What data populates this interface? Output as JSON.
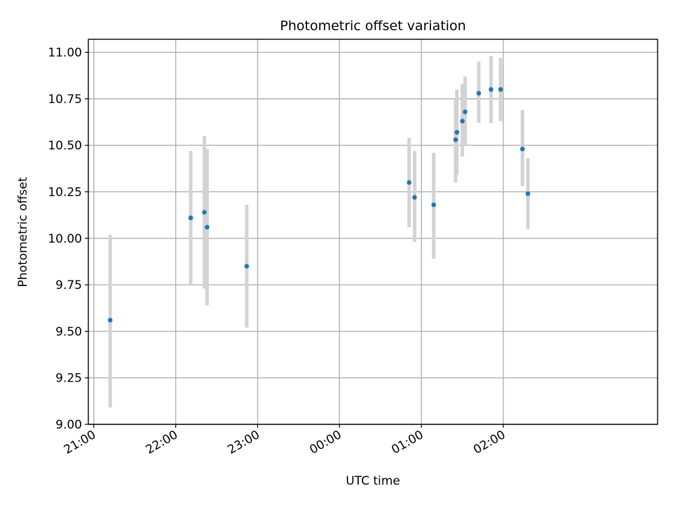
{
  "chart_data": {
    "type": "scatter",
    "title": "Photometric offset variation",
    "xlabel": "UTC time",
    "ylabel": "Photometric offset",
    "x_tick_labels": [
      "21:00",
      "22:00",
      "23:00",
      "00:00",
      "01:00",
      "02:00"
    ],
    "y_tick_labels": [
      "9.00",
      "9.25",
      "9.50",
      "9.75",
      "10.00",
      "10.25",
      "10.50",
      "10.75",
      "11.00"
    ],
    "y_ticks": [
      9.0,
      9.25,
      9.5,
      9.75,
      10.0,
      10.25,
      10.5,
      10.75,
      11.0
    ],
    "ylim": [
      9.0,
      11.07
    ],
    "xlim": [
      "20:56",
      "03:53"
    ],
    "grid": true,
    "point_color": "#1f77b4",
    "errorbar_color": "#d3d3d3",
    "points": [
      {
        "time": "21:12",
        "y": 9.56,
        "ylow": 9.09,
        "yhigh": 10.02
      },
      {
        "time": "22:11",
        "y": 10.11,
        "ylow": 9.75,
        "yhigh": 10.47
      },
      {
        "time": "22:21",
        "y": 10.14,
        "ylow": 9.73,
        "yhigh": 10.55
      },
      {
        "time": "22:23",
        "y": 10.06,
        "ylow": 9.64,
        "yhigh": 10.48
      },
      {
        "time": "22:52",
        "y": 9.85,
        "ylow": 9.52,
        "yhigh": 10.18
      },
      {
        "time": "00:51",
        "y": 10.3,
        "ylow": 10.06,
        "yhigh": 10.54
      },
      {
        "time": "00:55",
        "y": 10.22,
        "ylow": 9.98,
        "yhigh": 10.47
      },
      {
        "time": "01:09",
        "y": 10.18,
        "ylow": 9.89,
        "yhigh": 10.46
      },
      {
        "time": "01:25",
        "y": 10.53,
        "ylow": 10.3,
        "yhigh": 10.75
      },
      {
        "time": "01:26",
        "y": 10.57,
        "ylow": 10.34,
        "yhigh": 10.8
      },
      {
        "time": "01:30",
        "y": 10.63,
        "ylow": 10.44,
        "yhigh": 10.83
      },
      {
        "time": "01:32",
        "y": 10.68,
        "ylow": 10.5,
        "yhigh": 10.87
      },
      {
        "time": "01:42",
        "y": 10.78,
        "ylow": 10.62,
        "yhigh": 10.95
      },
      {
        "time": "01:51",
        "y": 10.8,
        "ylow": 10.62,
        "yhigh": 10.98
      },
      {
        "time": "01:58",
        "y": 10.8,
        "ylow": 10.63,
        "yhigh": 10.97
      },
      {
        "time": "02:14",
        "y": 10.48,
        "ylow": 10.28,
        "yhigh": 10.69
      },
      {
        "time": "02:18",
        "y": 10.24,
        "ylow": 10.05,
        "yhigh": 10.43
      }
    ]
  }
}
